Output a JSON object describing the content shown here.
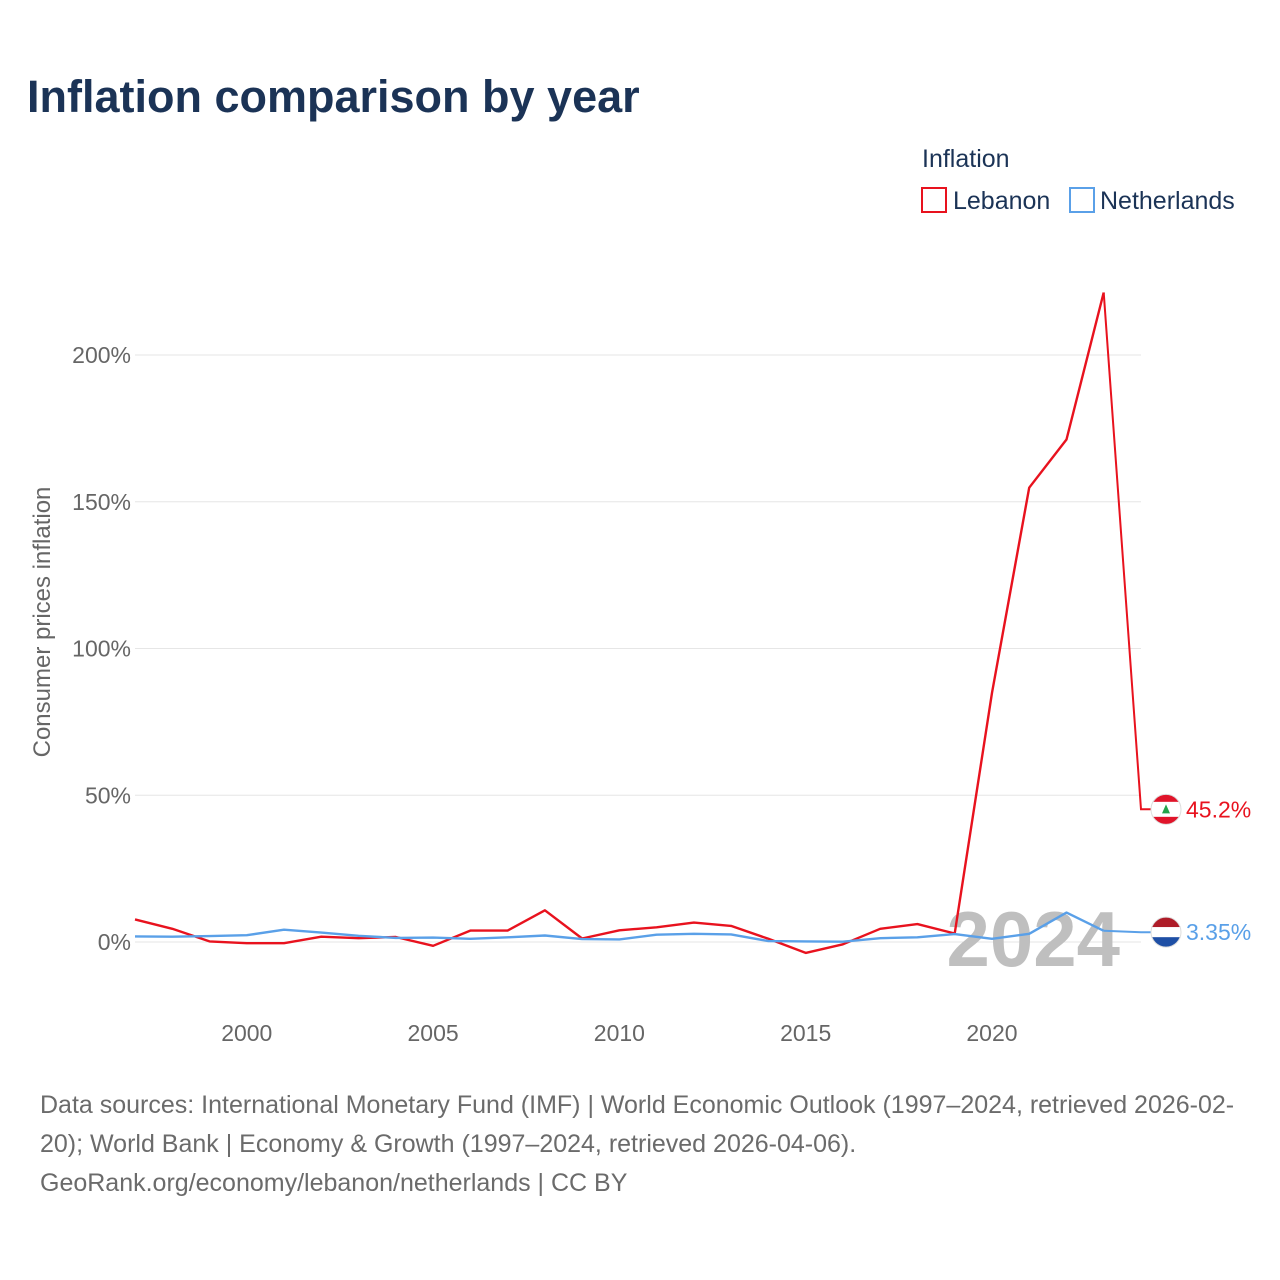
{
  "title": "Inflation comparison by year",
  "chart_data": {
    "type": "line",
    "title": "Inflation comparison by year",
    "xlabel": "",
    "ylabel": "Consumer prices inflation",
    "xlim": [
      1997,
      2024
    ],
    "ylim": [
      -20,
      220
    ],
    "x_ticks": [
      2000,
      2005,
      2010,
      2015,
      2020
    ],
    "y_ticks": [
      0,
      50,
      100,
      150,
      200
    ],
    "y_tick_labels": [
      "0%",
      "50%",
      "100%",
      "150%",
      "200%"
    ],
    "x_tick_labels": [
      "2000",
      "2005",
      "2010",
      "2015",
      "2020"
    ],
    "legend": {
      "title": "Inflation",
      "position": "top-right",
      "entries": [
        "Lebanon",
        "Netherlands"
      ]
    },
    "year_watermark": "2024",
    "x": [
      1997,
      1998,
      1999,
      2000,
      2001,
      2002,
      2003,
      2004,
      2005,
      2006,
      2007,
      2008,
      2009,
      2010,
      2011,
      2012,
      2013,
      2014,
      2015,
      2016,
      2017,
      2018,
      2019,
      2020,
      2021,
      2022,
      2023,
      2024
    ],
    "series": [
      {
        "name": "Lebanon",
        "color": "#e8121e",
        "end_label": "45.2%",
        "flag": "lebanon-flag",
        "values": [
          7.7,
          4.5,
          0.2,
          -0.4,
          -0.4,
          1.8,
          1.3,
          1.7,
          -1.3,
          3.9,
          3.9,
          10.8,
          1.2,
          4.0,
          5.0,
          6.6,
          5.5,
          1.1,
          -3.7,
          -0.8,
          4.5,
          6.1,
          2.9,
          84.9,
          154.8,
          171.2,
          221.3,
          45.2
        ]
      },
      {
        "name": "Netherlands",
        "color": "#5aa0e8",
        "end_label": "3.35%",
        "flag": "netherlands-flag",
        "values": [
          1.9,
          1.8,
          2.0,
          2.3,
          4.2,
          3.2,
          2.1,
          1.4,
          1.5,
          1.1,
          1.6,
          2.2,
          1.0,
          0.9,
          2.5,
          2.8,
          2.6,
          0.3,
          0.2,
          0.1,
          1.3,
          1.6,
          2.7,
          1.1,
          2.8,
          10.0,
          3.8,
          3.35
        ]
      }
    ]
  },
  "source": {
    "line1": "Data sources: International Monetary Fund (IMF) | World Economic Outlook (1997–2024, retrieved 2026-02-20); World Bank | Economy & Growth (1997–2024, retrieved 2026-04-06).",
    "line2": "GeoRank.org/economy/lebanon/netherlands | CC BY"
  }
}
